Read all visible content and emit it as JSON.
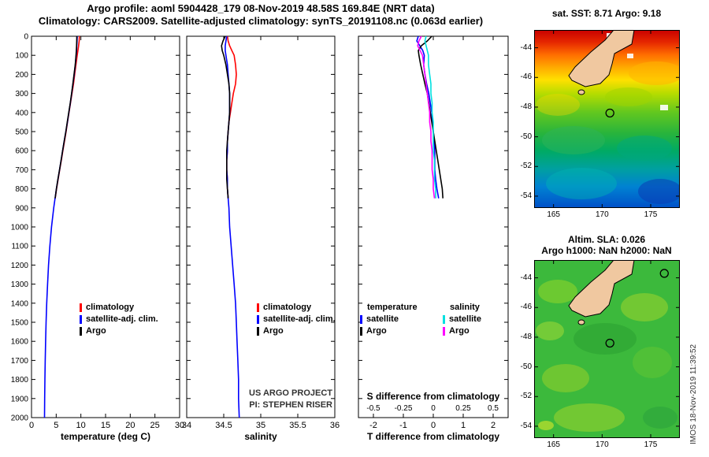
{
  "header": {
    "title_line1": "Argo profile: aoml 5904428_179 08-Nov-2019 48.58S 169.84E (NRT data)",
    "title_line2": "Climatology: CARS2009. Satellite-adjusted climatology: synTS_20191108.nc (0.063d earlier)"
  },
  "credits": {
    "line1": "US ARGO PROJECT",
    "line2": "PI: STEPHEN RISER"
  },
  "watermark": "IMOS 18-Nov-2019 11:39:52",
  "colors": {
    "climatology": "#ff0000",
    "satellite_clim": "#0000ff",
    "argo": "#000000",
    "sal_diff_satellite": "#00e0e0",
    "sal_diff_argo": "#ff00ff",
    "land": "#f0c8a0",
    "coast": "#000000"
  },
  "chart_data": [
    {
      "type": "line",
      "xlabel": "temperature (deg C)",
      "ylabel": "",
      "xlim": [
        0,
        30
      ],
      "x_ticks": [
        0,
        5,
        10,
        15,
        20,
        25,
        30
      ],
      "ylim": [
        0,
        2000
      ],
      "y_ticks": [
        0,
        100,
        200,
        300,
        400,
        500,
        600,
        700,
        800,
        900,
        1000,
        1100,
        1200,
        1300,
        1400,
        1500,
        1600,
        1700,
        1800,
        1900,
        2000
      ],
      "legend": [
        {
          "label": "climatology",
          "color_key": "climatology"
        },
        {
          "label": "satellite-adj. clim.",
          "color_key": "satellite_clim"
        },
        {
          "label": "Argo",
          "color_key": "argo"
        }
      ],
      "series": [
        {
          "name": "climatology",
          "color_key": "climatology",
          "depth": [
            0,
            25,
            50,
            75,
            100,
            150,
            200,
            250,
            300,
            350,
            400,
            450,
            500,
            550,
            600,
            650,
            700,
            750,
            800,
            850
          ],
          "values": [
            9.7,
            9.65,
            9.55,
            9.4,
            9.25,
            9.0,
            8.75,
            8.5,
            8.2,
            7.9,
            7.6,
            7.3,
            7.0,
            6.68,
            6.35,
            6.05,
            5.72,
            5.4,
            5.08,
            4.8
          ]
        },
        {
          "name": "satellite-adj. clim.",
          "color_key": "satellite_clim",
          "depth": [
            0,
            25,
            50,
            75,
            100,
            150,
            200,
            250,
            300,
            350,
            400,
            450,
            500,
            550,
            600,
            650,
            700,
            750,
            800,
            850,
            900,
            1000,
            1100,
            1200,
            1300,
            1400,
            1500,
            1600,
            1700,
            1800,
            1900,
            2000
          ],
          "values": [
            9.25,
            9.22,
            9.18,
            9.12,
            9.05,
            8.88,
            8.65,
            8.4,
            8.14,
            7.87,
            7.57,
            7.27,
            6.96,
            6.63,
            6.31,
            6.0,
            5.68,
            5.36,
            5.05,
            4.77,
            4.5,
            4.05,
            3.72,
            3.45,
            3.25,
            3.08,
            2.95,
            2.85,
            2.78,
            2.72,
            2.67,
            2.63
          ]
        },
        {
          "name": "Argo",
          "color_key": "argo",
          "depth": [
            0,
            25,
            50,
            75,
            100,
            150,
            200,
            250,
            300,
            350,
            400,
            450,
            500,
            550,
            600,
            650,
            700,
            750,
            800,
            850
          ],
          "values": [
            9.18,
            9.16,
            9.12,
            9.08,
            9.02,
            8.85,
            8.62,
            8.38,
            8.12,
            7.85,
            7.55,
            7.25,
            6.95,
            6.62,
            6.3,
            6.0,
            5.68,
            5.35,
            5.05,
            4.78
          ]
        }
      ]
    },
    {
      "type": "line",
      "xlabel": "salinity",
      "ylabel": "",
      "xlim": [
        34,
        36
      ],
      "x_ticks": [
        34,
        34.5,
        35,
        35.5,
        36
      ],
      "ylim": [
        0,
        2000
      ],
      "y_ticks": [
        0,
        100,
        200,
        300,
        400,
        500,
        600,
        700,
        800,
        900,
        1000,
        1100,
        1200,
        1300,
        1400,
        1500,
        1600,
        1700,
        1800,
        1900,
        2000
      ],
      "legend": [
        {
          "label": "climatology",
          "color_key": "climatology"
        },
        {
          "label": "satellite-adj. clim.",
          "color_key": "satellite_clim"
        },
        {
          "label": "Argo",
          "color_key": "argo"
        }
      ],
      "series": [
        {
          "name": "climatology",
          "color_key": "climatology",
          "depth": [
            0,
            25,
            50,
            75,
            100,
            150,
            200,
            250,
            300,
            350,
            400,
            450,
            500,
            550,
            600,
            650,
            700,
            750,
            800,
            850
          ],
          "values": [
            34.55,
            34.56,
            34.58,
            34.61,
            34.64,
            34.66,
            34.67,
            34.66,
            34.63,
            34.61,
            34.59,
            34.57,
            34.56,
            34.55,
            34.55,
            34.54,
            34.54,
            34.55,
            34.55,
            34.56
          ]
        },
        {
          "name": "satellite-adj. clim.",
          "color_key": "satellite_clim",
          "depth": [
            0,
            25,
            50,
            75,
            100,
            150,
            200,
            250,
            300,
            350,
            400,
            450,
            500,
            550,
            600,
            650,
            700,
            750,
            800,
            850,
            900,
            1000,
            1100,
            1200,
            1300,
            1400,
            1500,
            1600,
            1700,
            1800,
            1900,
            2000
          ],
          "values": [
            34.54,
            34.53,
            34.52,
            34.52,
            34.53,
            34.55,
            34.56,
            34.57,
            34.58,
            34.58,
            34.58,
            34.57,
            34.56,
            34.55,
            34.55,
            34.54,
            34.54,
            34.55,
            34.55,
            34.56,
            34.57,
            34.58,
            34.6,
            34.62,
            34.64,
            34.66,
            34.67,
            34.68,
            34.69,
            34.7,
            34.7,
            34.71
          ]
        },
        {
          "name": "Argo",
          "color_key": "argo",
          "depth": [
            0,
            25,
            50,
            75,
            100,
            150,
            200,
            250,
            300,
            350,
            400,
            450,
            500,
            550,
            600,
            650,
            700,
            750,
            800,
            850
          ],
          "values": [
            34.52,
            34.49,
            34.47,
            34.48,
            34.5,
            34.53,
            34.55,
            34.57,
            34.58,
            34.58,
            34.58,
            34.57,
            34.56,
            34.55,
            34.54,
            34.54,
            34.54,
            34.54,
            34.55,
            34.56
          ]
        }
      ]
    },
    {
      "type": "line",
      "xlabel": "T difference from climatology",
      "xlabel_secondary": "S difference from climatology",
      "ylabel": "",
      "xlim": [
        -2.5,
        2.5
      ],
      "x_ticks": [
        -2,
        -1,
        0,
        1,
        2
      ],
      "x2lim": [
        -0.625,
        0.625
      ],
      "x2_ticks": [
        -0.5,
        -0.25,
        0,
        0.25,
        0.5
      ],
      "ylim": [
        0,
        2000
      ],
      "y_ticks": [
        0,
        100,
        200,
        300,
        400,
        500,
        600,
        700,
        800,
        900,
        1000,
        1100,
        1200,
        1300,
        1400,
        1500,
        1600,
        1700,
        1800,
        1900,
        2000
      ],
      "legend": {
        "col1_header": "temperature",
        "col1": [
          {
            "label": "satellite",
            "color_key": "satellite_clim"
          },
          {
            "label": "Argo",
            "color_key": "argo"
          }
        ],
        "col2_header": "salinity",
        "col2": [
          {
            "label": "satellite",
            "color_key": "sal_diff_satellite"
          },
          {
            "label": "Argo",
            "color_key": "sal_diff_argo"
          }
        ]
      },
      "series": [
        {
          "name": "T satellite",
          "axis": "x",
          "color_key": "satellite_clim",
          "depth": [
            0,
            25,
            50,
            75,
            100,
            150,
            200,
            250,
            300,
            350,
            400,
            450,
            500,
            550,
            600,
            650,
            700,
            750,
            800,
            850
          ],
          "values": [
            -0.5,
            -0.55,
            -0.45,
            -0.35,
            -0.3,
            -0.32,
            -0.28,
            -0.22,
            -0.15,
            -0.1,
            -0.05,
            -0.02,
            0.0,
            0.03,
            0.05,
            0.05,
            0.05,
            0.08,
            0.12,
            0.18
          ]
        },
        {
          "name": "T Argo",
          "axis": "x",
          "color_key": "argo",
          "depth": [
            0,
            25,
            50,
            75,
            100,
            150,
            200,
            250,
            300,
            350,
            400,
            450,
            500,
            550,
            600,
            650,
            700,
            750,
            800,
            850
          ],
          "values": [
            -0.05,
            -0.2,
            -0.4,
            -0.5,
            -0.48,
            -0.42,
            -0.35,
            -0.28,
            -0.2,
            -0.15,
            -0.1,
            -0.05,
            0.0,
            0.05,
            0.1,
            0.15,
            0.2,
            0.25,
            0.3,
            0.32
          ]
        },
        {
          "name": "S satellite",
          "axis": "x2",
          "color_key": "sal_diff_satellite",
          "depth": [
            0,
            25,
            50,
            75,
            100,
            150,
            200,
            250,
            300,
            350,
            400,
            450,
            500,
            550,
            600,
            650,
            700,
            750,
            800,
            850
          ],
          "values": [
            -0.06,
            -0.07,
            -0.06,
            -0.05,
            -0.04,
            -0.04,
            -0.03,
            -0.02,
            -0.02,
            -0.01,
            -0.01,
            0.0,
            0.0,
            0.0,
            0.0,
            0.01,
            0.01,
            0.01,
            0.02,
            0.02
          ]
        },
        {
          "name": "S Argo",
          "axis": "x2",
          "color_key": "sal_diff_argo",
          "depth": [
            0,
            25,
            50,
            75,
            100,
            150,
            200,
            250,
            300,
            350,
            400,
            450,
            500,
            550,
            600,
            650,
            700,
            750,
            800,
            850
          ],
          "values": [
            -0.1,
            -0.12,
            -0.13,
            -0.11,
            -0.09,
            -0.08,
            -0.07,
            -0.06,
            -0.05,
            -0.04,
            -0.03,
            -0.03,
            -0.02,
            -0.02,
            -0.01,
            -0.01,
            -0.01,
            0.0,
            0.0,
            0.01
          ]
        }
      ]
    }
  ],
  "maps": {
    "sst": {
      "title": "sat. SST: 8.71 Argo: 9.18",
      "x_ticks": [
        165,
        170,
        175
      ],
      "y_ticks": [
        -44,
        -46,
        -48,
        -50,
        -52,
        -54
      ],
      "lon_range": [
        163,
        178
      ],
      "lat_range": [
        -42.8,
        -54.8
      ],
      "markers": [
        {
          "lon": 170.8,
          "lat": -48.4
        }
      ]
    },
    "sla": {
      "title_line1": "Altim. SLA: 0.026",
      "title_line2": "Argo h1000: NaN h2000: NaN",
      "x_ticks": [
        165,
        170,
        175
      ],
      "y_ticks": [
        -44,
        -46,
        -48,
        -50,
        -52,
        -54
      ],
      "lon_range": [
        163,
        178
      ],
      "lat_range": [
        -42.8,
        -54.8
      ],
      "markers": [
        {
          "lon": 170.8,
          "lat": -48.4
        },
        {
          "lon": 176.4,
          "lat": -43.7
        }
      ]
    }
  }
}
